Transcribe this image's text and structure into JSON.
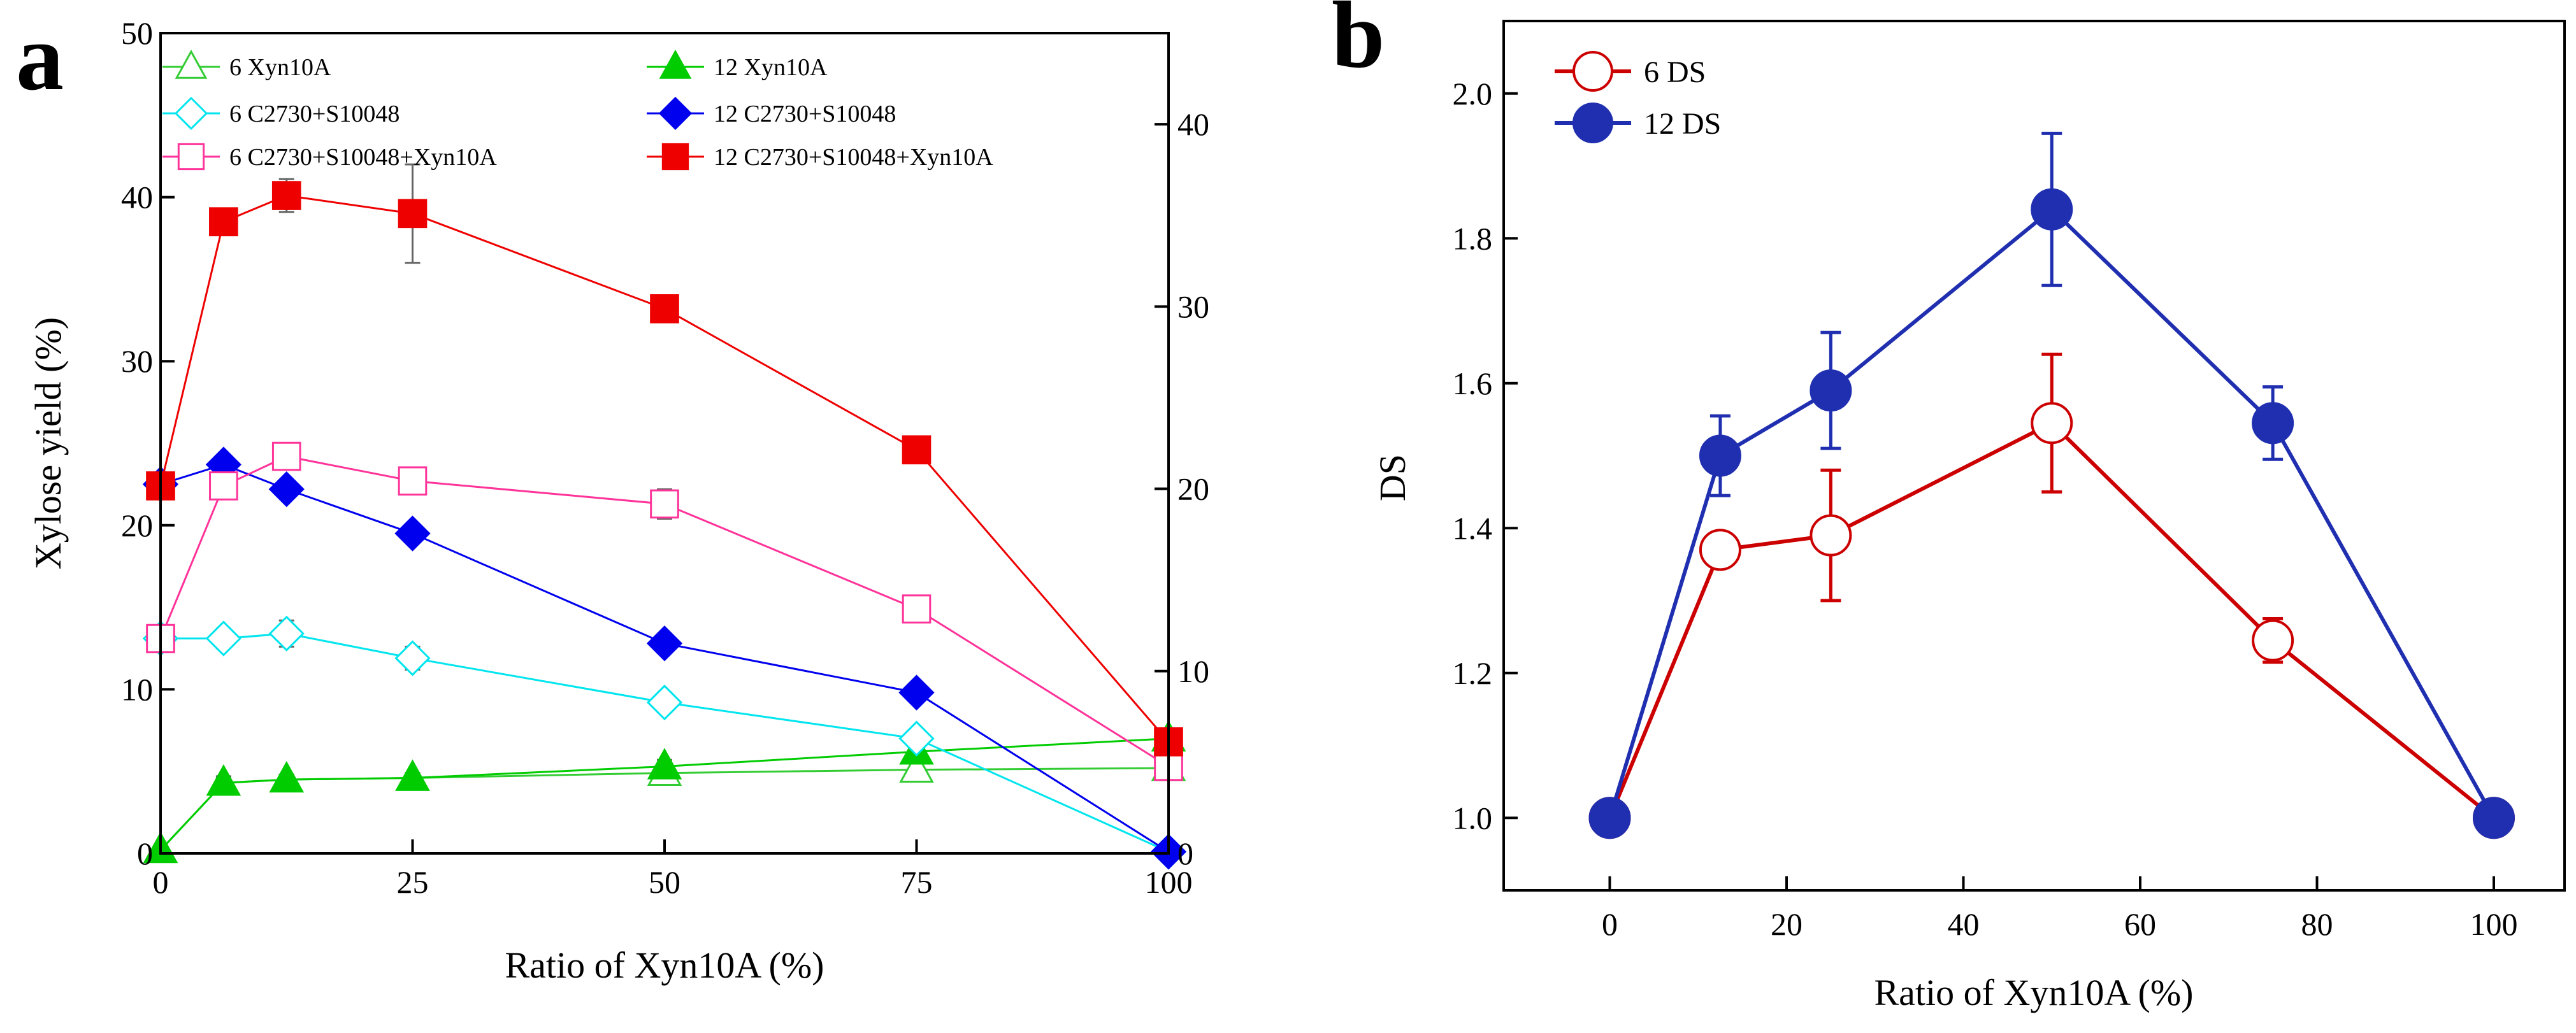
{
  "chart_data": [
    {
      "panel_label": "a",
      "type": "line",
      "xlabel": "Ratio of Xyn10A (%)",
      "ylabel": "Xylose yield (%)",
      "xlim": [
        0,
        100
      ],
      "ylim": [
        0,
        50
      ],
      "y2lim": [
        0,
        45
      ],
      "x_ticks": [
        "0",
        "25",
        "50",
        "75",
        "100"
      ],
      "y_ticks": [
        "0",
        "10",
        "20",
        "30",
        "40",
        "50"
      ],
      "y2_ticks": [
        "0",
        "10",
        "20",
        "30",
        "40"
      ],
      "legend_position": "top",
      "series": [
        {
          "name": "6 Xyn10A",
          "color": "#33cc33",
          "marker": "triangle",
          "filled": false,
          "x": [
            0,
            6.25,
            12.5,
            25,
            50,
            75,
            100
          ],
          "y": [
            0.2,
            4.3,
            4.5,
            4.6,
            4.9,
            5.1,
            5.2
          ],
          "err": [
            0,
            0.3,
            0.3,
            0.3,
            0.4,
            0.4,
            0
          ]
        },
        {
          "name": "12 Xyn10A",
          "color": "#00cc00",
          "marker": "triangle",
          "filled": true,
          "x": [
            0,
            6.25,
            12.5,
            25,
            50,
            75,
            100
          ],
          "y": [
            0.2,
            4.3,
            4.5,
            4.6,
            5.3,
            6.2,
            7.0
          ],
          "err": [
            0,
            0.4,
            0.3,
            0.3,
            0.4,
            0.5,
            0
          ]
        },
        {
          "name": "6 C2730+S10048",
          "color": "#00e5ee",
          "marker": "diamond",
          "filled": false,
          "x": [
            0,
            6.25,
            12.5,
            25,
            50,
            75,
            100
          ],
          "y": [
            13.1,
            13.1,
            13.4,
            11.9,
            9.2,
            7.0,
            0.1
          ],
          "err": [
            0,
            0.6,
            0.8,
            0.7,
            0.6,
            0.5,
            0
          ]
        },
        {
          "name": "12 C2730+S10048",
          "color": "#0000ee",
          "marker": "diamond",
          "filled": true,
          "x": [
            0,
            6.25,
            12.5,
            25,
            50,
            75,
            100
          ],
          "y": [
            22.5,
            23.7,
            22.2,
            19.5,
            12.8,
            9.8,
            0.1
          ],
          "err": [
            0,
            0.5,
            0.5,
            0.5,
            0.5,
            0.4,
            0
          ]
        },
        {
          "name": "6 C2730+S10048+Xyn10A",
          "color": "#ff3399",
          "marker": "square",
          "filled": false,
          "x": [
            0,
            6.25,
            12.5,
            25,
            50,
            75,
            100
          ],
          "y": [
            13.1,
            22.4,
            24.2,
            22.7,
            21.3,
            14.9,
            5.3
          ],
          "err": [
            0,
            0.5,
            0.5,
            0.6,
            0.9,
            0.5,
            0
          ]
        },
        {
          "name": "12 C2730+S10048+Xyn10A",
          "color": "#ee0000",
          "marker": "square",
          "filled": true,
          "x": [
            0,
            6.25,
            12.5,
            25,
            50,
            75,
            100
          ],
          "y": [
            22.4,
            38.5,
            40.1,
            39.0,
            33.2,
            24.6,
            6.8
          ],
          "err": [
            0,
            0.4,
            1.0,
            3.0,
            0.4,
            0.4,
            0
          ]
        }
      ]
    },
    {
      "panel_label": "b",
      "type": "line",
      "xlabel": "Ratio of Xyn10A (%)",
      "ylabel": "DS",
      "xlim": [
        -12,
        108
      ],
      "ylim": [
        0.9,
        2.1
      ],
      "x_ticks": [
        "0",
        "20",
        "40",
        "60",
        "80",
        "100"
      ],
      "y_ticks": [
        "1.0",
        "1.2",
        "1.4",
        "1.6",
        "1.8",
        "2.0"
      ],
      "legend_position": "top-left",
      "series": [
        {
          "name": "6 DS",
          "color": "#cc0000",
          "marker": "circle",
          "filled": false,
          "x": [
            0,
            12.5,
            25,
            50,
            75,
            100
          ],
          "y": [
            1.0,
            1.37,
            1.39,
            1.545,
            1.245,
            1.0
          ],
          "err": [
            0,
            0.02,
            0.09,
            0.095,
            0.03,
            0
          ]
        },
        {
          "name": "12 DS",
          "color": "#1f2fb0",
          "marker": "circle",
          "filled": true,
          "x": [
            0,
            12.5,
            25,
            50,
            75,
            100
          ],
          "y": [
            1.0,
            1.5,
            1.59,
            1.84,
            1.545,
            1.0
          ],
          "err": [
            0,
            0.055,
            0.08,
            0.105,
            0.05,
            0
          ]
        }
      ]
    }
  ]
}
